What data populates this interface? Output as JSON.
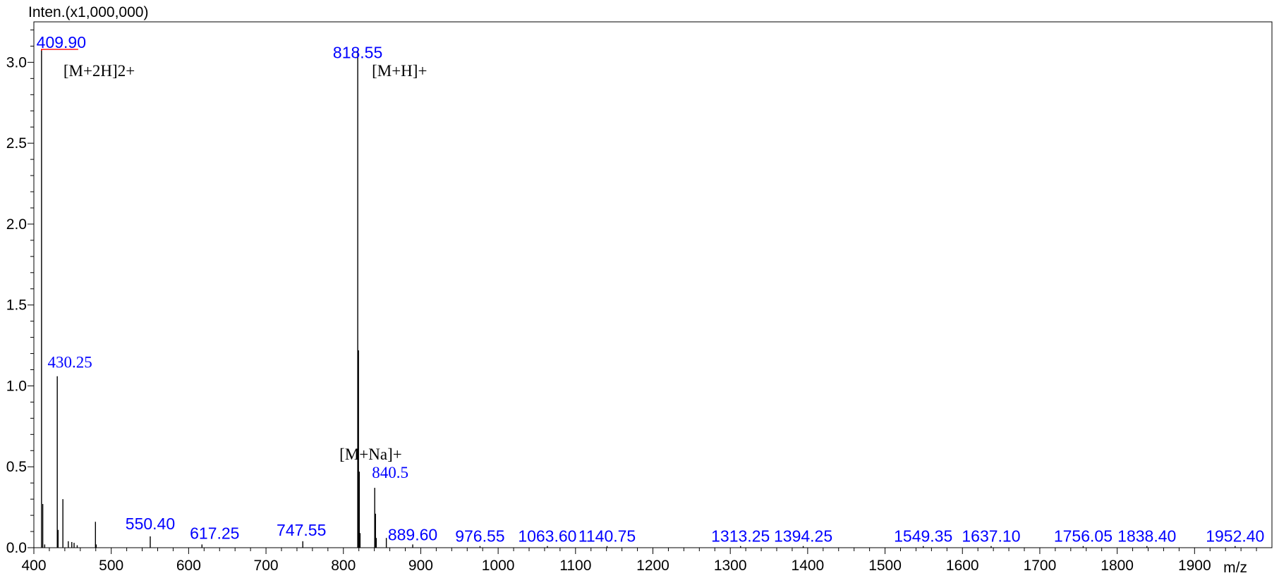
{
  "chart_data": {
    "type": "bar",
    "ylabel": "Inten.(x1,000,000)",
    "xlabel": "m/z",
    "xlim": [
      400,
      2000
    ],
    "ylim": [
      0,
      3.25
    ],
    "xticks": [
      400,
      500,
      600,
      700,
      800,
      900,
      1000,
      1100,
      1200,
      1300,
      1400,
      1500,
      1600,
      1700,
      1800,
      1900
    ],
    "yticks": [
      0.0,
      0.5,
      1.0,
      1.5,
      2.0,
      2.5,
      3.0
    ],
    "ytick_labels": [
      "0.0",
      "0.5",
      "1.0",
      "1.5",
      "2.0",
      "2.5",
      "3.0"
    ],
    "colors": {
      "peaks": "#000000",
      "peak_labels": "#0000ff",
      "ion_labels": "#000000",
      "saturation_marker": "#ff0000"
    },
    "peaks": [
      {
        "mz": 409.9,
        "intensity": 3.08,
        "saturated": true
      },
      {
        "mz": 411.5,
        "intensity": 0.27
      },
      {
        "mz": 414.0,
        "intensity": 0.02
      },
      {
        "mz": 430.25,
        "intensity": 1.06
      },
      {
        "mz": 431.3,
        "intensity": 0.11
      },
      {
        "mz": 437.5,
        "intensity": 0.3
      },
      {
        "mz": 444.5,
        "intensity": 0.04
      },
      {
        "mz": 449.0,
        "intensity": 0.035
      },
      {
        "mz": 452.0,
        "intensity": 0.03
      },
      {
        "mz": 456.0,
        "intensity": 0.015
      },
      {
        "mz": 479.6,
        "intensity": 0.16
      },
      {
        "mz": 480.6,
        "intensity": 0.02
      },
      {
        "mz": 550.4,
        "intensity": 0.07
      },
      {
        "mz": 617.25,
        "intensity": 0.02
      },
      {
        "mz": 747.55,
        "intensity": 0.04
      },
      {
        "mz": 818.55,
        "intensity": 3.07
      },
      {
        "mz": 819.55,
        "intensity": 1.22
      },
      {
        "mz": 820.55,
        "intensity": 0.47
      },
      {
        "mz": 821.55,
        "intensity": 0.09
      },
      {
        "mz": 840.5,
        "intensity": 0.37
      },
      {
        "mz": 841.5,
        "intensity": 0.21
      },
      {
        "mz": 842.5,
        "intensity": 0.06
      },
      {
        "mz": 855.5,
        "intensity": 0.06
      },
      {
        "mz": 889.6,
        "intensity": 0.02
      },
      {
        "mz": 976.55,
        "intensity": 0.01
      },
      {
        "mz": 1063.6,
        "intensity": 0.01
      },
      {
        "mz": 1140.75,
        "intensity": 0.01
      },
      {
        "mz": 1313.25,
        "intensity": 0.01
      },
      {
        "mz": 1394.25,
        "intensity": 0.01
      },
      {
        "mz": 1549.35,
        "intensity": 0.01
      },
      {
        "mz": 1637.1,
        "intensity": 0.01
      },
      {
        "mz": 1756.05,
        "intensity": 0.01
      },
      {
        "mz": 1838.4,
        "intensity": 0.01
      },
      {
        "mz": 1952.4,
        "intensity": 0.01
      }
    ],
    "peak_labels": [
      {
        "mz": 409.9,
        "text": "409.90",
        "intensity": 3.08,
        "style": "sans"
      },
      {
        "mz": 430.25,
        "text": "430.25",
        "intensity": 1.06,
        "style": "serif"
      },
      {
        "mz": 550.4,
        "text": "550.40",
        "intensity": 0.07,
        "style": "sans"
      },
      {
        "mz": 617.25,
        "text": "617.25",
        "intensity": 0.02,
        "style": "sans"
      },
      {
        "mz": 747.55,
        "text": "747.55",
        "intensity": 0.04,
        "style": "sans"
      },
      {
        "mz": 818.55,
        "text": "818.55",
        "intensity": 3.07,
        "style": "sans"
      },
      {
        "mz": 840.5,
        "text": "840.5",
        "intensity": 0.37,
        "style": "serif"
      },
      {
        "mz": 889.6,
        "text": "889.60",
        "intensity": 0.02,
        "style": "sans"
      },
      {
        "mz": 976.55,
        "text": "976.55",
        "intensity": 0.01,
        "style": "sans"
      },
      {
        "mz": 1063.6,
        "text": "1063.60",
        "intensity": 0.01,
        "style": "sans"
      },
      {
        "mz": 1140.75,
        "text": "1140.75",
        "intensity": 0.01,
        "style": "sans"
      },
      {
        "mz": 1313.25,
        "text": "1313.25",
        "intensity": 0.01,
        "style": "sans"
      },
      {
        "mz": 1394.25,
        "text": "1394.25",
        "intensity": 0.01,
        "style": "sans"
      },
      {
        "mz": 1549.35,
        "text": "1549.35",
        "intensity": 0.01,
        "style": "sans"
      },
      {
        "mz": 1637.1,
        "text": "1637.10",
        "intensity": 0.01,
        "style": "sans"
      },
      {
        "mz": 1756.05,
        "text": "1756.05",
        "intensity": 0.01,
        "style": "sans"
      },
      {
        "mz": 1838.4,
        "text": "1838.40",
        "intensity": 0.01,
        "style": "sans"
      },
      {
        "mz": 1952.4,
        "text": "1952.40",
        "intensity": 0.01,
        "style": "sans"
      }
    ],
    "ion_labels": [
      {
        "text": "[M+2H]2+",
        "mz": 409.9
      },
      {
        "text": "[M+H]+",
        "mz": 818.55
      },
      {
        "text": "[M+Na]+",
        "mz": 840.5
      }
    ]
  }
}
